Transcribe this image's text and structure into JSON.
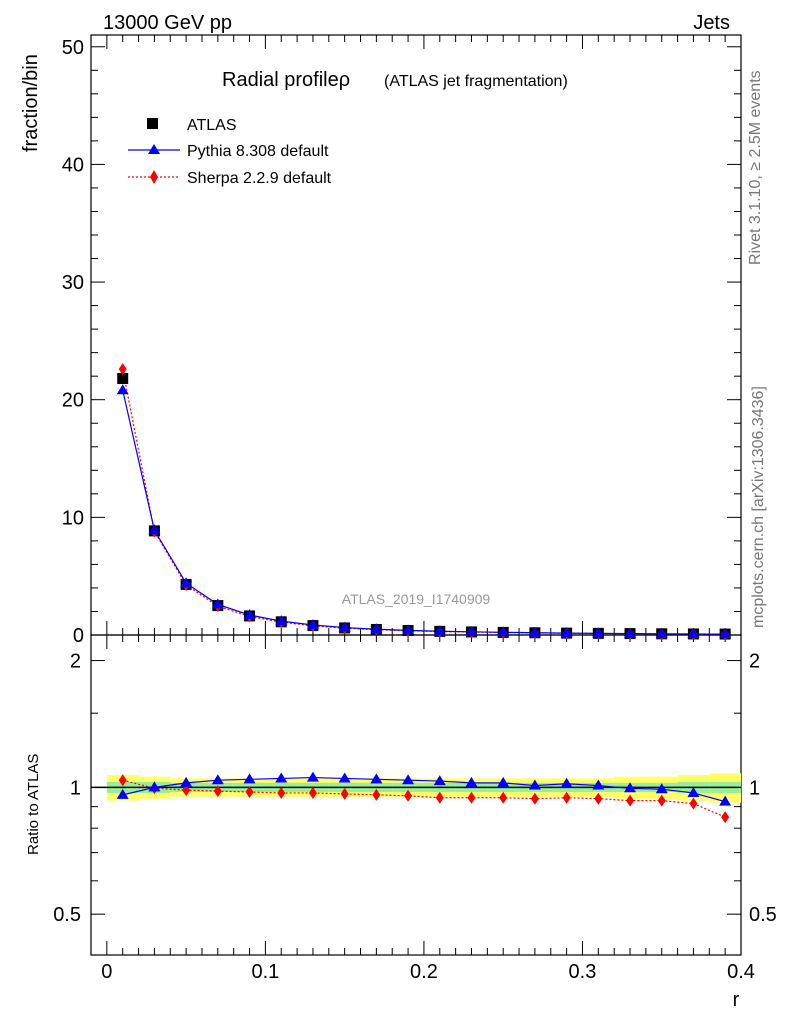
{
  "header": {
    "left": "13000 GeV pp",
    "right": "Jets"
  },
  "side_labels": {
    "rivet": "Rivet 3.1.10, ≥ 2.5M events",
    "mcplots": "mcplots.cern.ch [arXiv:1306.3436]"
  },
  "analysis_id": "ATLAS_2019_I1740909",
  "colors": {
    "atlas": "#000000",
    "pythia": "#0000ff",
    "sherpa": "#ff0000",
    "band_outer": "#ffff66",
    "band_inner": "#99ee99"
  },
  "chart_data": [
    {
      "type": "scatter",
      "panel": "main",
      "title": "Radial profileρ",
      "subtitle": "(ATLAS jet fragmentation)",
      "ylabel": "fraction/bin",
      "xlim": [
        -0.01,
        0.4
      ],
      "ylim": [
        0,
        51
      ],
      "yticks": [
        0,
        10,
        20,
        30,
        40,
        50
      ],
      "yticklabels": [
        "0",
        "10",
        "20",
        "30",
        "40",
        "50"
      ],
      "legend": [
        "ATLAS",
        "Pythia 8.308 default",
        "Sherpa 2.2.9 default"
      ],
      "x": [
        0.01,
        0.03,
        0.05,
        0.07,
        0.09,
        0.11,
        0.13,
        0.15,
        0.17,
        0.19,
        0.21,
        0.23,
        0.25,
        0.27,
        0.29,
        0.31,
        0.33,
        0.35,
        0.37,
        0.39
      ],
      "series": [
        {
          "name": "ATLAS",
          "values": [
            21.8,
            8.85,
            4.3,
            2.5,
            1.62,
            1.12,
            0.8,
            0.6,
            0.47,
            0.38,
            0.31,
            0.26,
            0.22,
            0.19,
            0.16,
            0.14,
            0.12,
            0.1,
            0.09,
            0.08
          ]
        },
        {
          "name": "Pythia 8.308 default",
          "values": [
            20.8,
            8.9,
            4.4,
            2.6,
            1.7,
            1.18,
            0.85,
            0.63,
            0.49,
            0.39,
            0.32,
            0.27,
            0.23,
            0.19,
            0.16,
            0.14,
            0.12,
            0.1,
            0.09,
            0.07
          ]
        },
        {
          "name": "Sherpa 2.2.9 default",
          "values": [
            22.6,
            8.8,
            4.25,
            2.45,
            1.58,
            1.09,
            0.78,
            0.58,
            0.45,
            0.36,
            0.29,
            0.25,
            0.21,
            0.18,
            0.15,
            0.13,
            0.11,
            0.09,
            0.08,
            0.07
          ]
        }
      ]
    },
    {
      "type": "scatter",
      "panel": "ratio",
      "ylabel": "Ratio to ATLAS",
      "xlabel": "r",
      "xlim": [
        -0.01,
        0.4
      ],
      "ylim": [
        0.4,
        2.3
      ],
      "yscale": "log",
      "yticks": [
        0.5,
        1,
        2
      ],
      "yticklabels": [
        "0.5",
        "1",
        "2"
      ],
      "xticks": [
        0,
        0.1,
        0.2,
        0.3,
        0.4
      ],
      "xticklabels": [
        "0",
        "0.1",
        "0.2",
        "0.3",
        "0.4"
      ],
      "x": [
        0.01,
        0.03,
        0.05,
        0.07,
        0.09,
        0.11,
        0.13,
        0.15,
        0.17,
        0.19,
        0.21,
        0.23,
        0.25,
        0.27,
        0.29,
        0.31,
        0.33,
        0.35,
        0.37,
        0.39
      ],
      "band_outer": [
        0.07,
        0.06,
        0.05,
        0.05,
        0.05,
        0.05,
        0.05,
        0.05,
        0.05,
        0.05,
        0.05,
        0.05,
        0.05,
        0.05,
        0.05,
        0.05,
        0.06,
        0.06,
        0.07,
        0.08
      ],
      "band_inner": [
        0.03,
        0.03,
        0.025,
        0.025,
        0.025,
        0.025,
        0.025,
        0.025,
        0.025,
        0.025,
        0.025,
        0.025,
        0.025,
        0.025,
        0.025,
        0.025,
        0.025,
        0.025,
        0.03,
        0.03
      ],
      "series": [
        {
          "name": "Pythia 8.308 default",
          "values": [
            0.96,
            1.0,
            1.025,
            1.04,
            1.045,
            1.05,
            1.055,
            1.05,
            1.045,
            1.04,
            1.035,
            1.025,
            1.025,
            1.01,
            1.02,
            1.01,
            0.995,
            0.99,
            0.97,
            0.925
          ]
        },
        {
          "name": "Sherpa 2.2.9 default",
          "values": [
            1.04,
            0.995,
            0.985,
            0.98,
            0.975,
            0.97,
            0.97,
            0.965,
            0.96,
            0.955,
            0.945,
            0.945,
            0.945,
            0.94,
            0.945,
            0.94,
            0.93,
            0.93,
            0.915,
            0.85
          ]
        }
      ]
    }
  ]
}
